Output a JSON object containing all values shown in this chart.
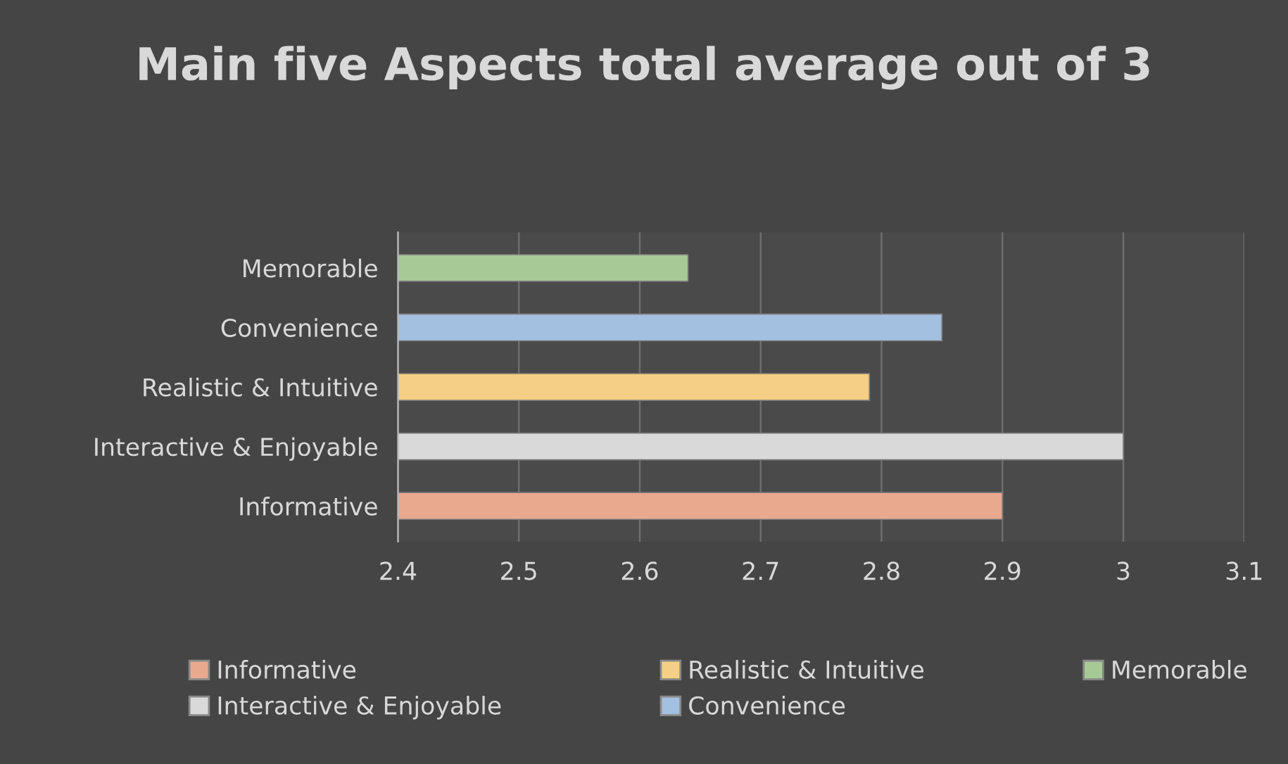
{
  "chart_data": {
    "type": "bar",
    "orientation": "horizontal",
    "title": "Main five Aspects total average out of 3",
    "categories": [
      "Memorable",
      "Convenience",
      "Realistic & Intuitive",
      "Interactive & Enjoyable",
      "Informative"
    ],
    "series": [
      {
        "name": "Informative",
        "color": "#e9a98f",
        "values": [
          null,
          null,
          null,
          null,
          2.9
        ]
      },
      {
        "name": "Interactive & Enjoyable",
        "color": "#d9d9d9",
        "values": [
          null,
          null,
          null,
          3.0,
          null
        ]
      },
      {
        "name": "Realistic & Intuitive",
        "color": "#f5cf85",
        "values": [
          null,
          null,
          2.79,
          null,
          null
        ]
      },
      {
        "name": "Convenience",
        "color": "#a3c0e0",
        "values": [
          null,
          2.85,
          null,
          null,
          null
        ]
      },
      {
        "name": "Memorable",
        "color": "#a6c995",
        "values": [
          2.64,
          null,
          null,
          null,
          null
        ]
      }
    ],
    "xlim": [
      2.4,
      3.1
    ],
    "xticks": [
      2.4,
      2.5,
      2.6,
      2.7,
      2.8,
      2.9,
      3,
      3.1
    ],
    "grid": "x",
    "legend": "bottom"
  }
}
